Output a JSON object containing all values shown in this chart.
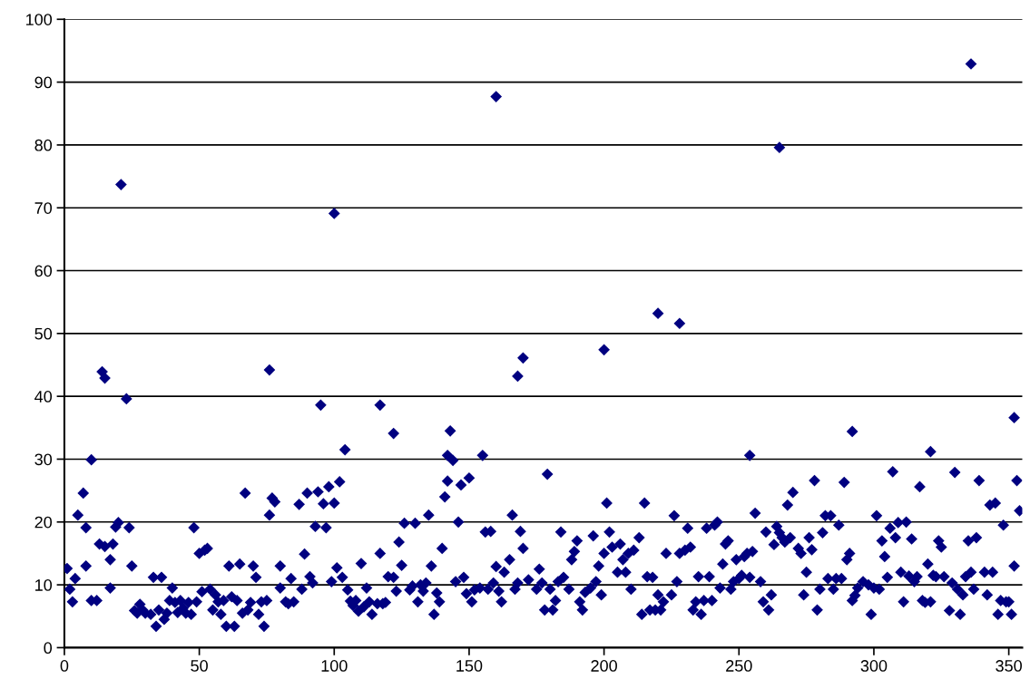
{
  "chart_data": {
    "type": "scatter",
    "marker": "diamond",
    "grid": "y",
    "legend": false,
    "xlim": [
      0,
      355
    ],
    "ylim": [
      0,
      100
    ],
    "xticks": [
      0,
      50,
      100,
      150,
      200,
      250,
      300,
      350
    ],
    "yticks": [
      0,
      10,
      20,
      30,
      40,
      50,
      60,
      70,
      80,
      90,
      100
    ],
    "series": [
      {
        "color": "#000080",
        "x": [
          1,
          2,
          3,
          4,
          5,
          7,
          8,
          8,
          10,
          10,
          12,
          13,
          14,
          15,
          15,
          17,
          17,
          18,
          19,
          20,
          21,
          23,
          24,
          25,
          26,
          27,
          28,
          29,
          30,
          32,
          33,
          34,
          35,
          36,
          37,
          38,
          39,
          40,
          41,
          42,
          43,
          44,
          45,
          46,
          47,
          48,
          49,
          50,
          51,
          52,
          53,
          54,
          55,
          56,
          57,
          58,
          59,
          60,
          61,
          62,
          63,
          64,
          65,
          66,
          67,
          68,
          69,
          70,
          71,
          72,
          73,
          74,
          75,
          76,
          76,
          77,
          78,
          80,
          80,
          82,
          83,
          84,
          85,
          87,
          88,
          89,
          90,
          91,
          92,
          93,
          94,
          95,
          96,
          97,
          98,
          99,
          100,
          100,
          101,
          102,
          103,
          104,
          105,
          106,
          107,
          108,
          109,
          110,
          111,
          112,
          113,
          114,
          116,
          117,
          117,
          118,
          119,
          120,
          122,
          122,
          123,
          124,
          125,
          126,
          128,
          129,
          130,
          131,
          132,
          133,
          134,
          135,
          136,
          137,
          138,
          139,
          140,
          141,
          142,
          142,
          143,
          144,
          145,
          146,
          147,
          148,
          149,
          150,
          151,
          152,
          154,
          155,
          156,
          157,
          158,
          159,
          160,
          160,
          161,
          162,
          163,
          165,
          166,
          167,
          168,
          168,
          169,
          170,
          170,
          172,
          175,
          176,
          177,
          178,
          179,
          180,
          181,
          182,
          183,
          184,
          185,
          187,
          188,
          189,
          190,
          191,
          192,
          193,
          195,
          196,
          197,
          198,
          199,
          200,
          200,
          201,
          202,
          203,
          205,
          206,
          207,
          208,
          209,
          210,
          211,
          213,
          214,
          215,
          216,
          217,
          218,
          219,
          220,
          220,
          221,
          222,
          223,
          225,
          226,
          227,
          228,
          228,
          230,
          231,
          232,
          233,
          234,
          235,
          236,
          237,
          238,
          239,
          240,
          241,
          242,
          243,
          244,
          245,
          246,
          247,
          248,
          249,
          250,
          251,
          252,
          253,
          254,
          254,
          255,
          256,
          258,
          259,
          260,
          261,
          262,
          263,
          264,
          265,
          265,
          266,
          267,
          268,
          269,
          270,
          272,
          273,
          274,
          275,
          276,
          277,
          278,
          279,
          280,
          281,
          282,
          283,
          284,
          285,
          286,
          287,
          288,
          289,
          290,
          291,
          292,
          292,
          293,
          294,
          296,
          298,
          299,
          300,
          301,
          302,
          303,
          304,
          305,
          306,
          307,
          308,
          309,
          310,
          311,
          312,
          313,
          314,
          315,
          316,
          317,
          318,
          319,
          320,
          321,
          321,
          322,
          323,
          324,
          325,
          326,
          328,
          329,
          330,
          331,
          332,
          333,
          334,
          335,
          336,
          336,
          337,
          338,
          339,
          341,
          342,
          343,
          344,
          345,
          346,
          347,
          348,
          349,
          350,
          351,
          352,
          352,
          353,
          354
        ],
        "values": [
          12.6,
          9.3,
          7.3,
          11,
          21.1,
          24.6,
          13,
          19.1,
          29.9,
          7.5,
          7.5,
          16.5,
          43.9,
          42.9,
          16.1,
          9.5,
          14,
          16.5,
          19.2,
          19.9,
          73.7,
          39.6,
          19.1,
          13,
          5.9,
          5.5,
          6.9,
          6,
          5.5,
          5.3,
          11.2,
          3.4,
          6,
          11.2,
          4.5,
          5.5,
          7.5,
          9.5,
          7.2,
          5.6,
          7.5,
          6.3,
          5.5,
          7.2,
          5.3,
          19.1,
          7.3,
          15,
          8.9,
          15.5,
          15.8,
          9.3,
          6,
          8.4,
          7.3,
          5.3,
          7.5,
          3.4,
          13,
          8.1,
          3.4,
          7.5,
          13.3,
          5.5,
          24.6,
          6,
          7.2,
          13,
          11.2,
          5.3,
          7.3,
          3.4,
          7.5,
          44.2,
          21.1,
          23.8,
          23.2,
          13,
          9.5,
          7.3,
          7,
          11,
          7.3,
          22.8,
          9.3,
          14.9,
          24.6,
          11.3,
          10.3,
          19.3,
          24.8,
          38.6,
          22.9,
          19.1,
          25.6,
          10.5,
          69.1,
          23,
          12.7,
          26.4,
          11.2,
          31.5,
          9.2,
          7.4,
          6.7,
          7.5,
          5.8,
          13.4,
          6.5,
          9.5,
          7.3,
          5.3,
          7,
          38.6,
          15,
          7,
          7.2,
          11.3,
          34.1,
          11.2,
          9,
          16.8,
          13.1,
          19.8,
          9.2,
          9.8,
          19.8,
          7.3,
          10,
          9,
          10.3,
          21.1,
          13,
          5.3,
          8.7,
          7.3,
          15.8,
          24,
          26.5,
          30.6,
          34.5,
          29.8,
          10.5,
          20,
          25.9,
          11.2,
          8.6,
          27,
          7.3,
          9.2,
          9.5,
          30.6,
          18.4,
          9.3,
          18.5,
          10.3,
          87.7,
          12.9,
          9,
          7.3,
          12,
          14,
          21.1,
          9.3,
          10.3,
          43.2,
          18.5,
          46.1,
          15.8,
          10.8,
          9.3,
          12.5,
          10.3,
          6,
          27.6,
          9.3,
          6,
          7.5,
          10.5,
          18.4,
          11.2,
          9.3,
          14,
          15.3,
          17,
          7.3,
          6,
          8.8,
          9.5,
          17.8,
          10.5,
          13,
          8.4,
          47.4,
          15,
          23,
          18.4,
          16,
          12,
          16.5,
          14,
          12,
          15,
          9.3,
          15.5,
          17.5,
          5.3,
          23,
          11.3,
          6,
          11.2,
          6,
          53.2,
          8.4,
          6,
          7.3,
          15,
          8.4,
          21,
          10.5,
          51.6,
          15,
          15.5,
          19,
          16,
          6,
          7.3,
          11.3,
          5.3,
          7.5,
          19,
          11.3,
          7.5,
          19.5,
          20,
          9.5,
          13.3,
          16.5,
          17,
          9.3,
          10.5,
          14,
          11,
          11.5,
          14.5,
          15,
          30.6,
          11.2,
          15.3,
          21.4,
          10.5,
          7.3,
          18.4,
          6,
          8.4,
          16.4,
          19.3,
          79.6,
          18.3,
          17.5,
          16.8,
          22.7,
          17.5,
          24.7,
          15.8,
          15,
          8.4,
          12,
          17.5,
          15.6,
          26.6,
          6,
          9.3,
          18.3,
          21,
          11,
          21,
          9.3,
          11,
          19.5,
          11,
          26.3,
          14,
          15,
          34.4,
          7.5,
          8.3,
          9.5,
          10.5,
          10,
          5.3,
          9.5,
          21,
          9.3,
          17,
          14.5,
          11.2,
          19,
          28,
          17.5,
          19.9,
          12,
          7.3,
          20,
          11.4,
          17.3,
          10.5,
          11.3,
          25.6,
          7.5,
          7.2,
          13.3,
          7.3,
          31.2,
          11.5,
          11.3,
          17,
          16,
          11.3,
          5.9,
          10.3,
          27.9,
          9.3,
          5.3,
          8.4,
          11.3,
          17,
          92.9,
          12,
          9.3,
          17.5,
          26.6,
          12,
          8.4,
          22.7,
          12,
          23,
          5.3,
          7.5,
          19.5,
          7.3,
          7.3,
          5.3,
          13,
          36.6,
          26.6,
          21.8
        ]
      }
    ]
  }
}
